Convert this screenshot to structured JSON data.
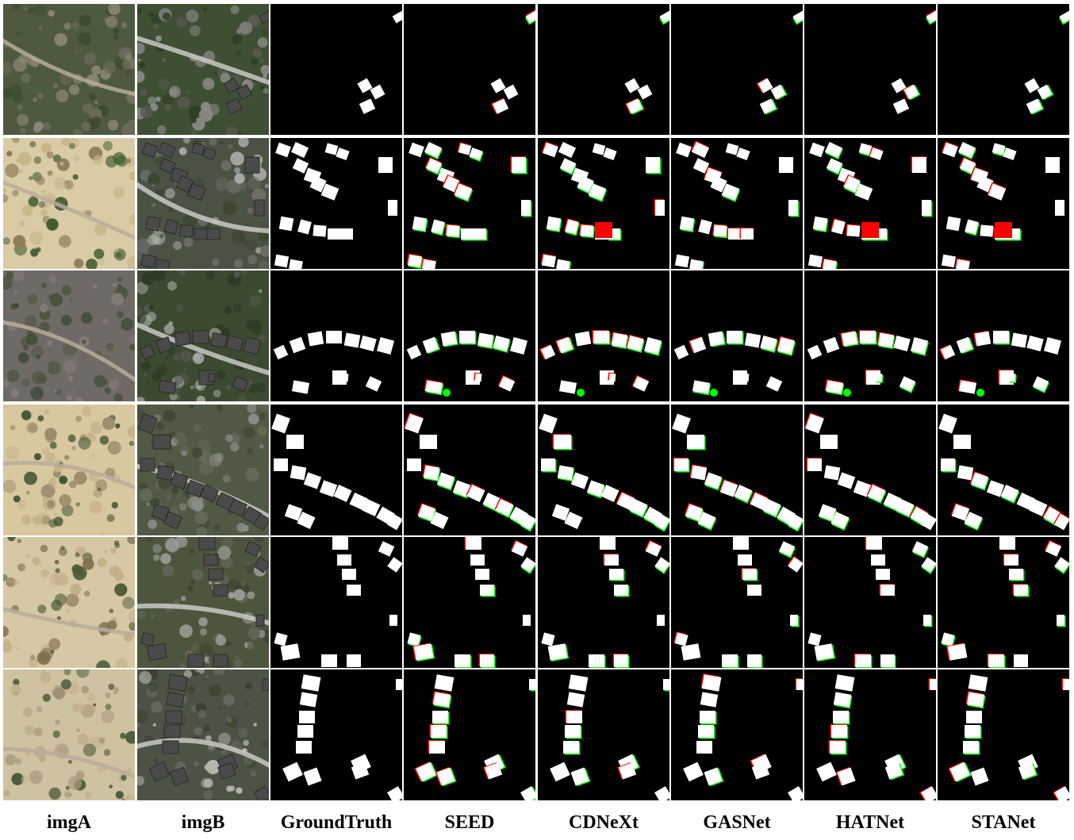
{
  "columns": [
    {
      "key": "imgA",
      "label": "imgA",
      "kind": "photo"
    },
    {
      "key": "imgB",
      "label": "imgB",
      "kind": "photo"
    },
    {
      "key": "gt",
      "label": "GroundTruth",
      "kind": "mask"
    },
    {
      "key": "seed",
      "label": "SEED",
      "kind": "mask"
    },
    {
      "key": "cdnext",
      "label": "CDNeXt",
      "kind": "mask"
    },
    {
      "key": "gasnet",
      "label": "GASNet",
      "kind": "mask"
    },
    {
      "key": "hatnet",
      "label": "HATNet",
      "kind": "mask"
    },
    {
      "key": "stanet",
      "label": "STANet",
      "kind": "mask"
    }
  ],
  "rows": 6,
  "colors": {
    "background": "#ffffff",
    "mask_background": "#000000",
    "true_positive": "#ffffff",
    "false_positive": "#ff0000",
    "false_negative": "#00ff00",
    "label_text": "#000000"
  },
  "scenes": [
    {
      "imgA": "sparse-trees-with-few-houses",
      "imgB": "trees-with-houses-along-road"
    },
    {
      "imgA": "bare-land-under-construction",
      "imgB": "residential-blocks"
    },
    {
      "imgA": "wooded-area-with-trail",
      "imgB": "curved-street-with-houses"
    },
    {
      "imgA": "bare-land-with-road",
      "imgB": "houses-along-diagonal-road"
    },
    {
      "imgA": "construction-site-with-few-houses",
      "imgB": "houses-along-street"
    },
    {
      "imgA": "bare-land-with-curved-road",
      "imgB": "curved-street-with-houses"
    }
  ]
}
